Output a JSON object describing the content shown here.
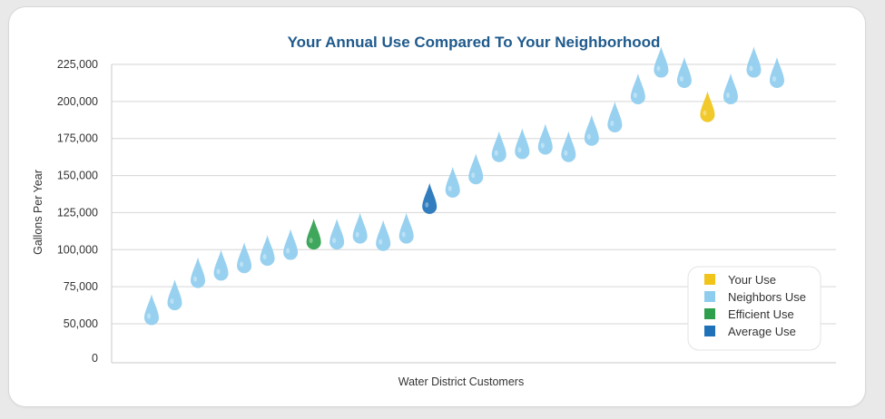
{
  "chart_data": {
    "type": "scatter",
    "title": "Your Annual Use Compared To Your Neighborhood",
    "xlabel": "Water District Customers",
    "ylabel": "Gallons Per Year",
    "ylim": [
      0,
      225000
    ],
    "yticks": [
      0,
      50000,
      75000,
      100000,
      125000,
      150000,
      175000,
      200000,
      225000
    ],
    "ytick_labels": [
      "0",
      "50,000",
      "75,000",
      "100,000",
      "125,000",
      "150,000",
      "175,000",
      "200,000",
      "225,000"
    ],
    "grid": true,
    "marker": "water-drop",
    "legend_position": "bottom-right",
    "series": [
      {
        "name": "Your Use",
        "color": "#f0c419",
        "x": [
          25
        ],
        "values": [
          191000
        ]
      },
      {
        "name": "Neighbors Use",
        "color": "#8fcdef",
        "x": [
          1,
          2,
          3,
          4,
          5,
          6,
          7,
          9,
          10,
          11,
          12,
          14,
          15,
          16,
          17,
          18,
          19,
          20,
          21,
          22,
          23,
          24,
          26,
          27,
          28
        ],
        "values": [
          54000,
          64000,
          79000,
          84000,
          89000,
          94000,
          98000,
          105000,
          109000,
          104000,
          109000,
          140000,
          149000,
          164000,
          166000,
          169000,
          164000,
          175000,
          184000,
          203000,
          221000,
          214000,
          203000,
          221000,
          214000
        ]
      },
      {
        "name": "Efficient Use",
        "color": "#2ea04d",
        "x": [
          8
        ],
        "values": [
          105000
        ]
      },
      {
        "name": "Average Use",
        "color": "#1f72b8",
        "x": [
          13
        ],
        "values": [
          129000
        ]
      }
    ],
    "legend": [
      {
        "label": "Your Use",
        "color": "#f0c419"
      },
      {
        "label": "Neighbors Use",
        "color": "#8fcdef"
      },
      {
        "label": "Efficient Use",
        "color": "#2ea04d"
      },
      {
        "label": "Average Use",
        "color": "#1f72b8"
      }
    ]
  }
}
